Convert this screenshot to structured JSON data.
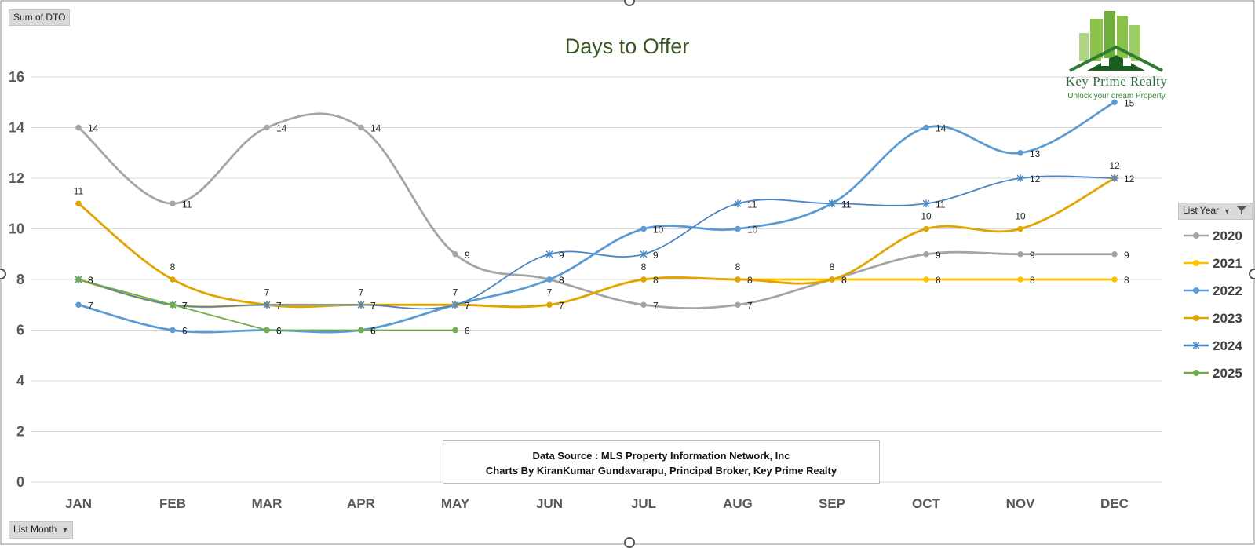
{
  "fields": {
    "value_field": "Sum of DTO",
    "axis_field": "List Month",
    "legend_field": "List Year"
  },
  "source_box": {
    "line1": "Data Source : MLS Property Information Network, Inc",
    "line2": "Charts By KiranKumar Gundavarapu, Principal Broker, Key Prime Realty"
  },
  "logo": {
    "name": "Key Prime Realty",
    "tagline": "Unlock your dream Property"
  },
  "icons": [
    "filter-icon",
    "dropdown-caret-icon",
    "building-logo-icon"
  ],
  "colors": {
    "2020": "#a5a5a5",
    "2021": "#ffc000",
    "2022": "#5b9bd5",
    "2023": "#e0a500",
    "2024": "#4a86c5",
    "2025": "#70ad47",
    "title": "#375623",
    "logo_green": "#2e7d32"
  },
  "chart_data": {
    "type": "line",
    "title": "Days to Offer",
    "xlabel": "",
    "ylabel": "",
    "categories": [
      "JAN",
      "FEB",
      "MAR",
      "APR",
      "MAY",
      "JUN",
      "JUL",
      "AUG",
      "SEP",
      "OCT",
      "NOV",
      "DEC"
    ],
    "ylim": [
      0,
      16
    ],
    "yticks": [
      0,
      2,
      4,
      6,
      8,
      10,
      12,
      14,
      16
    ],
    "grid": true,
    "smooth": true,
    "legend_position": "right",
    "series": [
      {
        "name": "2020",
        "values": [
          14,
          11,
          14,
          14,
          9,
          8,
          7,
          7,
          8,
          9,
          9,
          9
        ]
      },
      {
        "name": "2021",
        "values": [
          8,
          7,
          7,
          7,
          7,
          7,
          8,
          8,
          8,
          8,
          8,
          8
        ]
      },
      {
        "name": "2022",
        "values": [
          7,
          6,
          6,
          6,
          7,
          8,
          10,
          10,
          11,
          14,
          13,
          15
        ]
      },
      {
        "name": "2023",
        "values": [
          11,
          8,
          7,
          7,
          7,
          7,
          8,
          8,
          8,
          10,
          10,
          12
        ]
      },
      {
        "name": "2024",
        "values": [
          8,
          7,
          7,
          7,
          7,
          9,
          9,
          11,
          11,
          11,
          12,
          12
        ]
      },
      {
        "name": "2025",
        "values": [
          8,
          7,
          6,
          6,
          6,
          null,
          null,
          null,
          null,
          null,
          null,
          null
        ]
      }
    ]
  }
}
